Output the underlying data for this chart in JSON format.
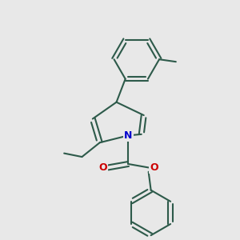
{
  "bg_color": "#e8e8e8",
  "bond_color": "#2d5a4a",
  "N_color": "#0000cc",
  "O_color": "#cc0000",
  "bond_width": 1.5,
  "figsize": [
    3.0,
    3.0
  ],
  "dpi": 100,
  "xlim": [
    0,
    10
  ],
  "ylim": [
    0,
    10
  ]
}
